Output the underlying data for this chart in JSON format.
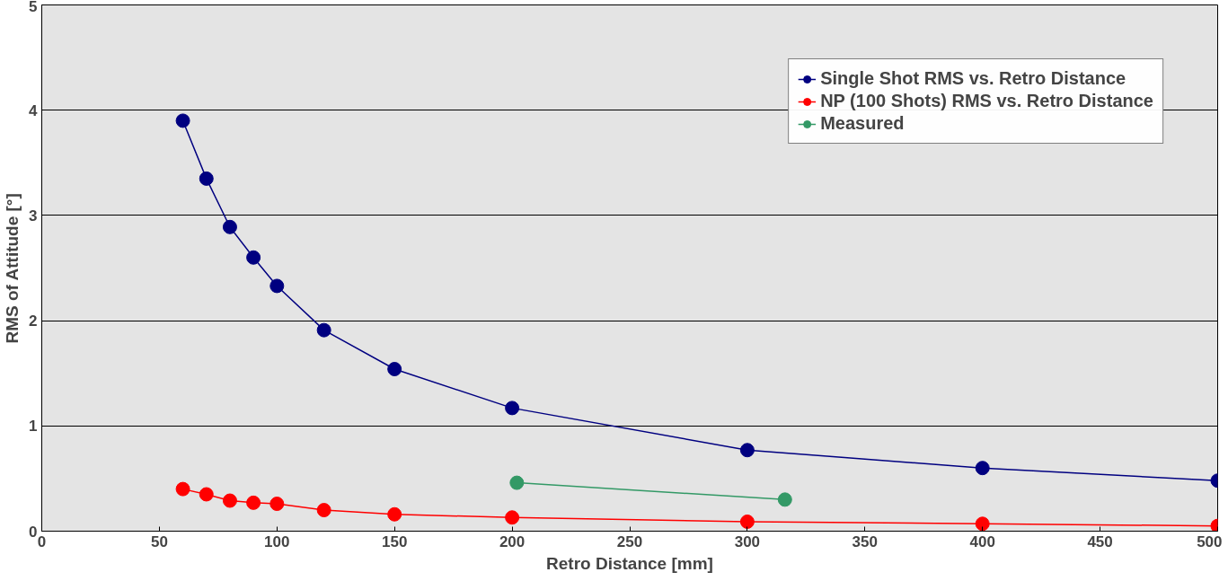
{
  "chart_data": {
    "type": "line",
    "xlabel": "Retro Distance [mm]",
    "ylabel": "RMS of Attitude [°]",
    "xlim": [
      0,
      500
    ],
    "ylim": [
      0,
      5
    ],
    "xticks": [
      0,
      50,
      100,
      150,
      200,
      250,
      300,
      350,
      400,
      450,
      500
    ],
    "yticks": [
      0,
      1,
      2,
      3,
      4,
      5
    ],
    "grid": "y",
    "legend": "top right",
    "marker": "circle",
    "line_style": "solid",
    "series": [
      {
        "name": "Single Shot RMS vs. Retro Distance",
        "color": "#000080",
        "x": [
          60,
          70,
          80,
          90,
          100,
          120,
          150,
          200,
          300,
          400,
          500
        ],
        "values": [
          3.9,
          3.35,
          2.89,
          2.6,
          2.33,
          1.91,
          1.54,
          1.17,
          0.77,
          0.6,
          0.48
        ]
      },
      {
        "name": "NP (100 Shots) RMS vs. Retro Distance",
        "color": "#ff0000",
        "x": [
          60,
          70,
          80,
          90,
          100,
          120,
          150,
          200,
          300,
          400,
          500
        ],
        "values": [
          0.4,
          0.35,
          0.29,
          0.27,
          0.26,
          0.2,
          0.16,
          0.13,
          0.09,
          0.07,
          0.05
        ]
      },
      {
        "name": "Measured",
        "color": "#339966",
        "x": [
          202,
          316
        ],
        "values": [
          0.46,
          0.3
        ]
      }
    ]
  }
}
